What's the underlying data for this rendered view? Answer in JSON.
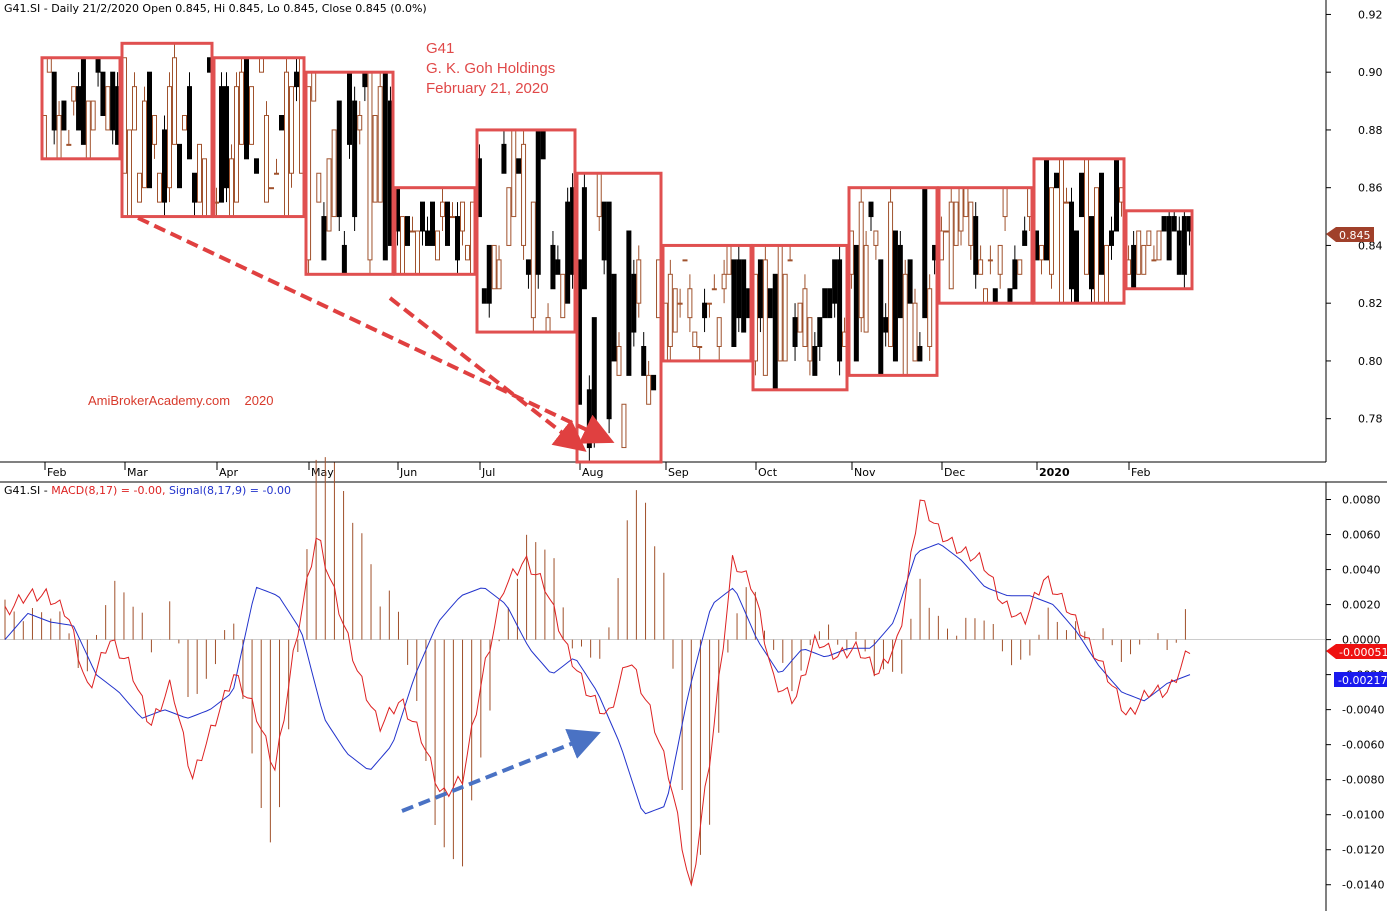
{
  "header": {
    "price_title": "G41.SI - Daily 21/2/2020 Open 0.845, Hi 0.845, Lo 0.845, Close 0.845 (0.0%)",
    "macd_prefix": "G41.SI - ",
    "macd_label": "MACD(8,17) = -0.00,",
    "signal_label": "Signal(8,17,9) = -0.00"
  },
  "annotation": {
    "line1": "G41",
    "line2": "G. K. Goh Holdings",
    "line3": "February 21, 2020",
    "watermark": "AmiBrokerAcademy.com    2020"
  },
  "colors": {
    "box": "#e05050",
    "arrow_red": "#e04040",
    "arrow_blue": "#4a72c4",
    "macd": "#dd2222",
    "signal": "#2233cc",
    "hist": "#a0502a",
    "up_candle": "#a0522d",
    "down_candle": "#000000",
    "badge_price": "#a0402a",
    "badge_macd": "#ee1111",
    "badge_signal": "#1a1aee"
  },
  "chart_data": [
    {
      "type": "candlestick",
      "title": "G41.SI - Daily 21/2/2020 Open 0.845, Hi 0.845, Lo 0.845, Close 0.845 (0.0%)",
      "x_labels": [
        "Feb",
        "Mar",
        "Apr",
        "May",
        "Jun",
        "Jul",
        "Aug",
        "Sep",
        "Oct",
        "Nov",
        "Dec",
        "2020",
        "Feb"
      ],
      "y_ticks": [
        0.78,
        0.8,
        0.82,
        0.84,
        0.86,
        0.88,
        0.9,
        0.92
      ],
      "ylim": [
        0.765,
        0.925
      ],
      "last_close": 0.845,
      "last_close_label": "0.845",
      "monthly_ranges": [
        {
          "month": "Feb 2019",
          "high": 0.905,
          "low": 0.87
        },
        {
          "month": "Mar 2019",
          "high": 0.91,
          "low": 0.85
        },
        {
          "month": "Apr 2019",
          "high": 0.905,
          "low": 0.85
        },
        {
          "month": "May 2019",
          "high": 0.9,
          "low": 0.83
        },
        {
          "month": "Jun 2019",
          "high": 0.86,
          "low": 0.83
        },
        {
          "month": "Jul 2019",
          "high": 0.88,
          "low": 0.81
        },
        {
          "month": "Aug 2019",
          "high": 0.865,
          "low": 0.765
        },
        {
          "month": "Sep 2019",
          "high": 0.84,
          "low": 0.8
        },
        {
          "month": "Oct 2019",
          "high": 0.84,
          "low": 0.79
        },
        {
          "month": "Nov 2019",
          "high": 0.86,
          "low": 0.795
        },
        {
          "month": "Dec 2019",
          "high": 0.86,
          "low": 0.82
        },
        {
          "month": "Jan 2020",
          "high": 0.87,
          "low": 0.82
        },
        {
          "month": "Feb 2020",
          "high": 0.852,
          "low": 0.825
        }
      ]
    },
    {
      "type": "line",
      "title": "G41.SI - MACD(8,17) = -0.00, Signal(8,17,9) = -0.00",
      "y_ticks": [
        -0.014,
        -0.012,
        -0.01,
        -0.008,
        -0.006,
        -0.004,
        -0.002,
        0.0,
        0.002,
        0.004,
        0.006,
        0.008
      ],
      "y_tick_labels": [
        "-0.0140",
        "-0.0120",
        "-0.0100",
        "-0.0080",
        "-0.0060",
        "-0.0040",
        "-0.0020",
        "0.0000",
        "0.0020",
        "0.0040",
        "0.0060",
        "0.0080"
      ],
      "ylim": [
        -0.0155,
        0.009
      ],
      "last_values": {
        "macd": "-0.00051",
        "signal": "-0.00217"
      },
      "series": [
        {
          "name": "MACD(8,17)",
          "keypoints": [
            0.0015,
            0.0025,
            0.0025,
            0.0015,
            -0.003,
            0.0,
            -0.0015,
            -0.005,
            -0.0025,
            -0.008,
            -0.005,
            -0.002,
            -0.004,
            -0.0075,
            0.0,
            0.006,
            0.002,
            -0.002,
            -0.005,
            -0.0035,
            -0.0055,
            -0.009,
            -0.008,
            -0.002,
            0.003,
            0.0045,
            0.003,
            -0.0005,
            -0.003,
            -0.0045,
            -0.001,
            -0.004,
            -0.008,
            -0.0145,
            -0.006,
            0.0045,
            0.003,
            -0.0025,
            -0.0035,
            0.0,
            -0.001,
            -0.0005,
            -0.002,
            0.0,
            0.008,
            0.006,
            0.005,
            0.0045,
            0.002,
            0.001,
            0.0035,
            0.002,
            0.0,
            -0.002,
            -0.0045,
            -0.003,
            -0.003,
            -0.0005
          ]
        },
        {
          "name": "Signal(8,17,9)",
          "keypoints": [
            0.0,
            0.0015,
            0.001,
            0.0008,
            -0.002,
            -0.003,
            -0.0045,
            -0.004,
            -0.0045,
            -0.004,
            -0.003,
            0.003,
            0.0025,
            0.0005,
            -0.0045,
            -0.0065,
            -0.0075,
            -0.006,
            -0.002,
            0.001,
            0.0025,
            0.003,
            0.002,
            -0.0005,
            -0.002,
            -0.001,
            -0.003,
            -0.006,
            -0.01,
            -0.0095,
            -0.003,
            0.002,
            0.003,
            0.0,
            -0.002,
            -0.0005,
            -0.001,
            -0.0005,
            -0.0005,
            0.001,
            0.005,
            0.0055,
            0.0045,
            0.003,
            0.0025,
            0.0025,
            0.002,
            0.0005,
            -0.0015,
            -0.003,
            -0.0035,
            -0.0025,
            -0.002
          ]
        }
      ]
    }
  ]
}
